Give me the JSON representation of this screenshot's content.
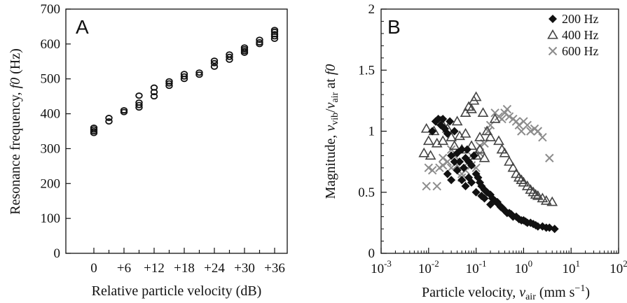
{
  "chart_data": [
    {
      "panel": "A",
      "type": "scatter",
      "xlabel": "Relative particle velocity (dB)",
      "ylabel_parts": [
        "Resonance frequency, ",
        "f0",
        " (Hz)"
      ],
      "ylim": [
        0,
        700
      ],
      "yticks": [
        0,
        100,
        200,
        300,
        400,
        500,
        600,
        700
      ],
      "xticks": [
        "0",
        "+6",
        "+12",
        "+18",
        "+24",
        "+30",
        "+36"
      ],
      "x_levels_db": [
        0,
        3,
        6,
        9,
        12,
        15,
        18,
        21,
        24,
        27,
        30,
        33,
        36
      ],
      "y_values": [
        [
          345,
          350,
          355,
          360
        ],
        [
          378,
          388
        ],
        [
          405,
          410
        ],
        [
          418,
          425,
          432,
          452
        ],
        [
          450,
          462,
          475
        ],
        [
          480,
          487,
          493
        ],
        [
          500,
          507,
          514
        ],
        [
          512,
          518
        ],
        [
          535,
          545,
          552
        ],
        [
          555,
          563,
          570
        ],
        [
          575,
          580,
          585,
          590
        ],
        [
          600,
          605,
          612
        ],
        [
          615,
          622,
          628,
          635,
          640
        ]
      ],
      "marker": "open-circle",
      "color": "#111111"
    },
    {
      "panel": "B",
      "type": "scatter",
      "xscale": "log",
      "xlim": [
        0.001,
        100
      ],
      "ylim": [
        0,
        2
      ],
      "xtick_exponents": [
        "-3",
        "-2",
        "-1",
        "0",
        "1",
        "2"
      ],
      "yticks": [
        "0",
        "0.5",
        "1",
        "1.5",
        "2"
      ],
      "xlabel_parts": [
        "Particle velocity, ",
        "v",
        "air",
        " (mm s",
        "−1",
        ")"
      ],
      "ylabel_parts": [
        "Magnitude, ",
        "v",
        "vib",
        "/",
        "v",
        "air",
        " at ",
        "f0"
      ],
      "series": [
        {
          "name": "200 Hz",
          "marker": "filled-diamond",
          "color": "#111111",
          "x": [
            0.012,
            0.014,
            0.016,
            0.018,
            0.02,
            0.022,
            0.025,
            0.028,
            0.03,
            0.035,
            0.04,
            0.045,
            0.05,
            0.055,
            0.06,
            0.065,
            0.07,
            0.08,
            0.09,
            0.1,
            0.11,
            0.12,
            0.13,
            0.15,
            0.17,
            0.2,
            0.22,
            0.25,
            0.28,
            0.3,
            0.33,
            0.36,
            0.4,
            0.45,
            0.5,
            0.55,
            0.6,
            0.7,
            0.8,
            0.9,
            1.0,
            1.1,
            1.2,
            1.4,
            1.6,
            1.8,
            2.0,
            2.5,
            3.0,
            3.5,
            4.5,
            0.025,
            0.03,
            0.035,
            0.04,
            0.05,
            0.06,
            0.07,
            0.08,
            0.1,
            0.13,
            0.15,
            0.2
          ],
          "y": [
            1.0,
            1.08,
            1.1,
            1.05,
            1.1,
            1.02,
            0.98,
            1.08,
            0.8,
            1.0,
            0.82,
            0.75,
            0.85,
            0.7,
            0.78,
            0.85,
            0.75,
            0.72,
            0.8,
            0.65,
            0.62,
            0.58,
            0.55,
            0.52,
            0.5,
            0.48,
            0.45,
            0.43,
            0.42,
            0.4,
            0.38,
            0.37,
            0.35,
            0.33,
            0.33,
            0.32,
            0.3,
            0.3,
            0.28,
            0.27,
            0.27,
            0.26,
            0.25,
            0.25,
            0.24,
            0.23,
            0.22,
            0.22,
            0.21,
            0.21,
            0.2,
            0.65,
            0.6,
            0.75,
            0.68,
            0.6,
            0.55,
            0.62,
            0.58,
            0.5,
            0.47,
            0.45,
            0.4
          ]
        },
        {
          "name": "400 Hz",
          "marker": "open-triangle",
          "color": "#444444",
          "x": [
            0.008,
            0.009,
            0.01,
            0.011,
            0.013,
            0.015,
            0.018,
            0.02,
            0.025,
            0.03,
            0.035,
            0.04,
            0.045,
            0.05,
            0.06,
            0.07,
            0.08,
            0.09,
            0.1,
            0.12,
            0.14,
            0.17,
            0.2,
            0.25,
            0.3,
            0.35,
            0.4,
            0.5,
            0.6,
            0.7,
            0.8,
            0.9,
            1.0,
            1.2,
            1.4,
            1.6,
            1.8,
            2.0,
            2.5,
            3.0,
            4.0,
            0.06,
            0.08,
            0.1,
            0.12,
            0.15
          ],
          "y": [
            0.82,
            1.02,
            0.92,
            0.8,
            1.0,
            0.9,
            1.08,
            0.92,
            1.02,
            0.95,
            0.88,
            1.08,
            0.96,
            0.85,
            1.15,
            1.2,
            1.18,
            1.25,
            1.28,
            0.95,
            1.15,
            1.0,
            0.95,
            1.1,
            0.92,
            0.85,
            0.82,
            0.75,
            0.7,
            0.65,
            0.62,
            0.6,
            0.58,
            0.55,
            0.52,
            0.5,
            0.48,
            0.47,
            0.45,
            0.43,
            0.42,
            0.98,
            0.88,
            0.8,
            0.85,
            0.78
          ]
        },
        {
          "name": "600 Hz",
          "marker": "x-cross",
          "color": "#8c8c8c",
          "x": [
            0.009,
            0.01,
            0.012,
            0.015,
            0.017,
            0.02,
            0.025,
            0.03,
            0.035,
            0.04,
            0.05,
            0.06,
            0.07,
            0.08,
            0.1,
            0.12,
            0.15,
            0.18,
            0.2,
            0.25,
            0.3,
            0.35,
            0.4,
            0.45,
            0.5,
            0.6,
            0.7,
            0.8,
            0.9,
            1.0,
            1.2,
            1.4,
            1.7,
            2.0,
            2.5,
            3.5,
            0.02,
            0.03,
            0.05,
            0.08,
            0.12
          ],
          "y": [
            0.55,
            0.7,
            0.68,
            0.55,
            0.7,
            0.72,
            0.75,
            0.7,
            0.8,
            0.72,
            0.62,
            0.68,
            0.75,
            0.8,
            0.7,
            0.82,
            0.9,
            1.0,
            1.05,
            1.15,
            1.12,
            1.1,
            1.15,
            1.18,
            1.12,
            1.1,
            1.08,
            1.05,
            1.0,
            1.08,
            1.05,
            1.0,
            1.02,
            1.0,
            0.95,
            0.78,
            0.78,
            0.85,
            0.65,
            0.72,
            0.88
          ]
        }
      ]
    }
  ]
}
